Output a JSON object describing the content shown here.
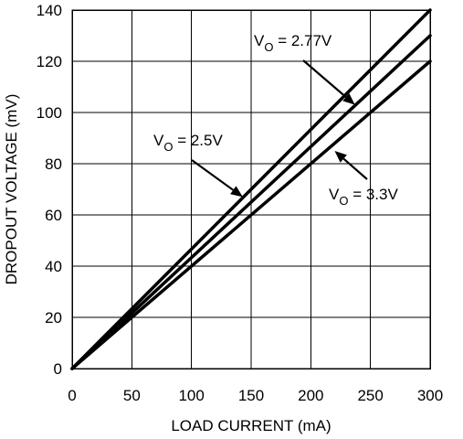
{
  "chart_data": {
    "type": "line",
    "title": "",
    "xlabel": "LOAD CURRENT (mA)",
    "ylabel": "DROPOUT VOLTAGE (mV)",
    "xlim": [
      0,
      300
    ],
    "ylim": [
      0,
      140
    ],
    "xticks": [
      0,
      50,
      100,
      150,
      200,
      250,
      300
    ],
    "yticks": [
      0,
      20,
      40,
      60,
      80,
      100,
      120,
      140
    ],
    "grid": true,
    "legend": "none",
    "series": [
      {
        "x": [
          0,
          300
        ],
        "y": [
          0,
          140
        ]
      },
      {
        "x": [
          0,
          300
        ],
        "y": [
          0,
          130
        ]
      },
      {
        "x": [
          0,
          300
        ],
        "y": [
          0,
          120
        ]
      }
    ],
    "annotations": [
      {
        "text_main": "V",
        "text_sub": "O",
        "text_rest": " = 2.77V",
        "series_index": 1,
        "points_to": [
          237,
          103
        ]
      },
      {
        "text_main": "V",
        "text_sub": "O",
        "text_rest": " = 2.5V",
        "series_index": 0,
        "points_to": [
          143,
          67
        ]
      },
      {
        "text_main": "V",
        "text_sub": "O",
        "text_rest": " = 3.3V",
        "series_index": 2,
        "points_to": [
          220,
          85
        ]
      }
    ],
    "colors": {
      "line": "#000000",
      "grid": "#000000",
      "background": "#ffffff"
    }
  }
}
